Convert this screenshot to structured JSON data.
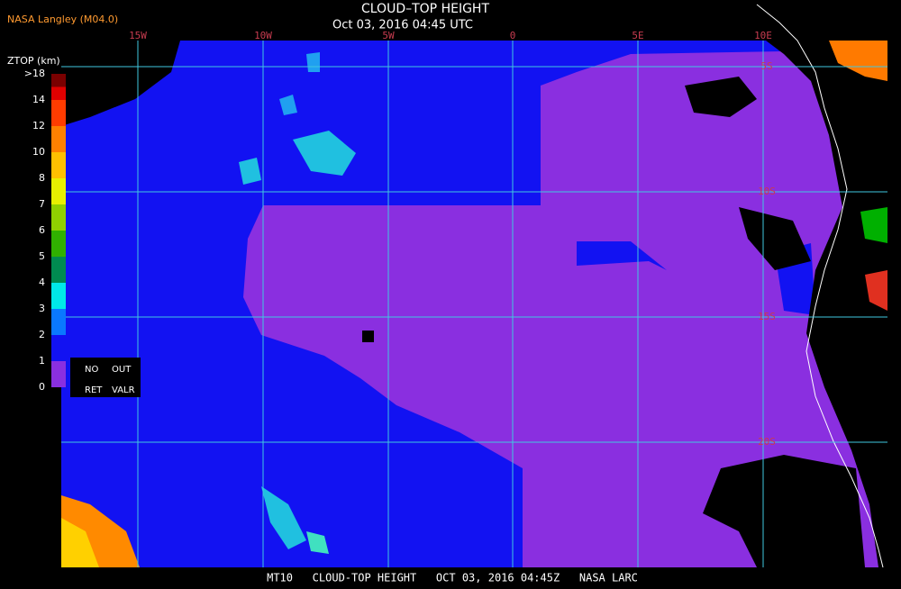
{
  "header": {
    "title": "CLOUD–TOP HEIGHT",
    "subtitle": "Oct 03, 2016 04:45 UTC",
    "source": "NASA Langley (M04.0)"
  },
  "legend": {
    "title": "ZTOP (km)",
    "labels": [
      ">18",
      "14",
      "12",
      "10",
      "8",
      "7",
      "6",
      "5",
      "4",
      "3",
      "2",
      "1",
      "0"
    ],
    "flags": [
      "NO",
      "OUT",
      "RET",
      "VALR"
    ]
  },
  "longitude_labels": [
    "15W",
    "10W",
    "5W",
    "0",
    "5E",
    "10E"
  ],
  "latitude_labels": [
    "5S",
    "10S",
    "15S",
    "20S"
  ],
  "footer": "MT10   CLOUD-TOP HEIGHT   OCT 03, 2016 04:45Z   NASA LARC"
}
